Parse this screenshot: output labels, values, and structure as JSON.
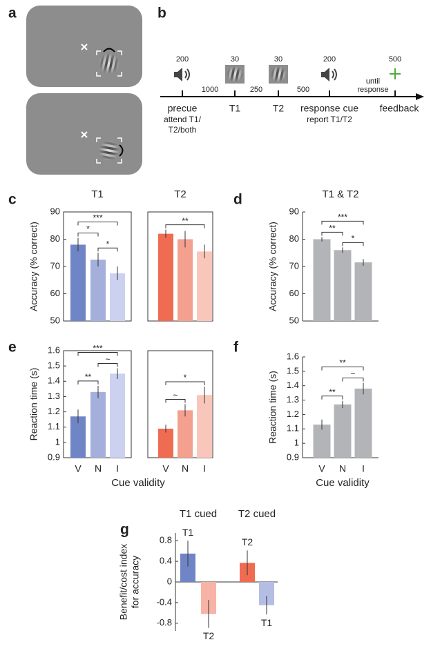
{
  "stimuli": {
    "panel": "a"
  },
  "timeline": {
    "panel": "b",
    "events": [
      {
        "label": "precue",
        "note": [
          "attend T1/",
          "T2/both"
        ],
        "duration": 200
      },
      {
        "label": "T1",
        "duration": 30
      },
      {
        "label": "T2",
        "duration": 30
      },
      {
        "label": "response cue",
        "note": [
          "report T1/T2"
        ],
        "duration": 200
      },
      {
        "label": "feedback",
        "duration": 500
      }
    ],
    "intervals": [
      1000,
      250,
      500
    ],
    "final_interval": [
      "until",
      "response"
    ]
  },
  "chart_data": [
    {
      "type": "bar",
      "panel": "c",
      "title": "T1",
      "ylabel": "Accuracy (% correct)",
      "values": [
        78,
        72.5,
        67.5
      ],
      "errors": [
        2.5,
        2.5,
        2.5
      ],
      "colors": [
        "#7085c5",
        "#a4afdc",
        "#cbd1ee"
      ],
      "ylim": [
        50,
        90
      ],
      "yticks": [
        50,
        60,
        70,
        80,
        90
      ],
      "brackets": [
        {
          "between": [
            0,
            1
          ],
          "label": "*"
        },
        {
          "between": [
            0,
            2
          ],
          "label": "***"
        },
        {
          "between": [
            1,
            2
          ],
          "label": "*"
        }
      ]
    },
    {
      "type": "bar",
      "title": "T2",
      "values": [
        82,
        80,
        75.5
      ],
      "errors": [
        1.5,
        3,
        2.5
      ],
      "colors": [
        "#ef6b52",
        "#f4a08e",
        "#f8c6ba"
      ],
      "ylim": [
        50,
        90
      ],
      "brackets": [
        {
          "between": [
            0,
            2
          ],
          "label": "**"
        }
      ]
    },
    {
      "type": "bar",
      "panel": "d",
      "title": "T1 & T2",
      "ylabel": "Accuracy (% correct)",
      "values": [
        80,
        76,
        71.5
      ],
      "errors": [
        0.8,
        1,
        1.2
      ],
      "colors": [
        "#b3b4b8",
        "#b3b4b8",
        "#b3b4b8"
      ],
      "ylim": [
        50,
        90
      ],
      "yticks": [
        50,
        60,
        70,
        80,
        90
      ],
      "brackets": [
        {
          "between": [
            0,
            1
          ],
          "label": "**"
        },
        {
          "between": [
            0,
            2
          ],
          "label": "***"
        },
        {
          "between": [
            1,
            2
          ],
          "label": "*"
        }
      ]
    },
    {
      "type": "bar",
      "panel": "e",
      "ylabel": "Reaction time (s)",
      "xlabel": "Cue validity",
      "categories": [
        "V",
        "N",
        "I"
      ],
      "values": [
        1.17,
        1.33,
        1.45
      ],
      "errors": [
        0.045,
        0.04,
        0.035
      ],
      "colors": [
        "#7085c5",
        "#a4afdc",
        "#cbd1ee"
      ],
      "ylim": [
        0.9,
        1.6
      ],
      "yticks": [
        0.9,
        1,
        1.1,
        1.2,
        1.3,
        1.4,
        1.5,
        1.6
      ],
      "brackets": [
        {
          "between": [
            0,
            1
          ],
          "label": "**"
        },
        {
          "between": [
            0,
            2
          ],
          "label": "***"
        },
        {
          "between": [
            1,
            2
          ],
          "label": "~"
        }
      ]
    },
    {
      "type": "bar",
      "categories": [
        "V",
        "N",
        "I"
      ],
      "values": [
        1.09,
        1.21,
        1.31
      ],
      "errors": [
        0.025,
        0.04,
        0.055
      ],
      "colors": [
        "#ef6b52",
        "#f4a08e",
        "#f8c6ba"
      ],
      "ylim": [
        0.9,
        1.6
      ],
      "brackets": [
        {
          "between": [
            0,
            1
          ],
          "label": "~"
        },
        {
          "between": [
            0,
            2
          ],
          "label": "*"
        }
      ]
    },
    {
      "type": "bar",
      "panel": "f",
      "ylabel": "Reaction time (s)",
      "xlabel": "Cue validity",
      "categories": [
        "V",
        "N",
        "I"
      ],
      "values": [
        1.13,
        1.27,
        1.38
      ],
      "errors": [
        0.035,
        0.025,
        0.04
      ],
      "colors": [
        "#b3b4b8",
        "#b3b4b8",
        "#b3b4b8"
      ],
      "ylim": [
        0.9,
        1.6
      ],
      "yticks": [
        0.9,
        1,
        1.1,
        1.2,
        1.3,
        1.4,
        1.5,
        1.6
      ],
      "brackets": [
        {
          "between": [
            0,
            1
          ],
          "label": "**"
        },
        {
          "between": [
            0,
            2
          ],
          "label": "**"
        },
        {
          "between": [
            1,
            2
          ],
          "label": "~"
        }
      ]
    },
    {
      "type": "grouped_bar",
      "panel": "g",
      "ylabel": [
        "Benefit/cost index",
        "for accuracy"
      ],
      "categories": [
        "T1 cued",
        "T2 cued"
      ],
      "bars": [
        [
          {
            "label": "T1",
            "value": 0.55,
            "error": 0.25,
            "color": "#7085c5"
          },
          {
            "label": "T2",
            "value": -0.62,
            "error": 0.27,
            "color": "#f6b3a6"
          }
        ],
        [
          {
            "label": "T2",
            "value": 0.37,
            "error": 0.24,
            "color": "#ef6b52"
          },
          {
            "label": "T1",
            "value": -0.45,
            "error": 0.18,
            "color": "#b4bde3"
          }
        ]
      ],
      "ylim": [
        -0.95,
        0.95
      ],
      "yticks": [
        -0.8,
        -0.4,
        0,
        0.4,
        0.8
      ]
    }
  ]
}
